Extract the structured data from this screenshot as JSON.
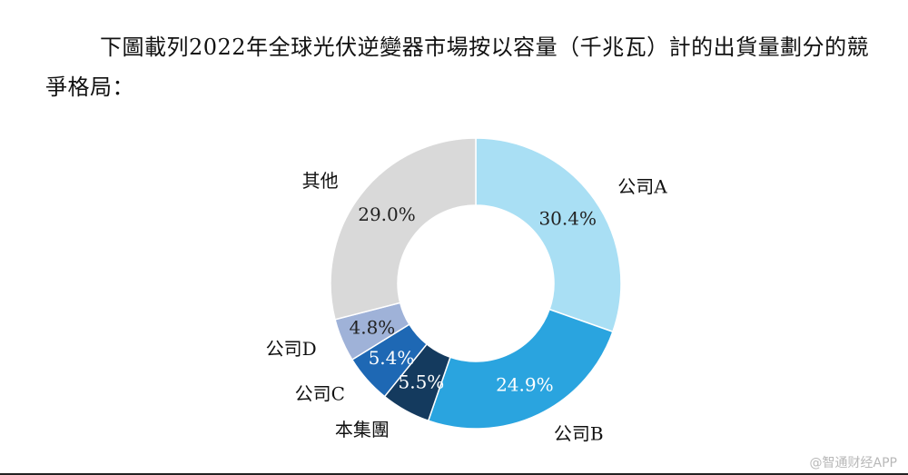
{
  "intro_text": "下圖載列2022年全球光伏逆變器市場按以容量（千兆瓦）計的出貨量劃分的競爭格局：",
  "watermark": "@智通财经APP",
  "chart_data": {
    "type": "pie",
    "style": "donut",
    "title": "",
    "unit": "%",
    "slices": [
      {
        "label": "公司A",
        "value": 30.4,
        "display": "30.4%",
        "color": "#a9dff4",
        "text_color": "#222222"
      },
      {
        "label": "公司B",
        "value": 24.9,
        "display": "24.9%",
        "color": "#2aa4df",
        "text_color": "#ffffff"
      },
      {
        "label": "本集團",
        "value": 5.5,
        "display": "5.5%",
        "color": "#143a5e",
        "text_color": "#ffffff"
      },
      {
        "label": "公司C",
        "value": 5.4,
        "display": "5.4%",
        "color": "#1e68b4",
        "text_color": "#ffffff"
      },
      {
        "label": "公司D",
        "value": 4.8,
        "display": "4.8%",
        "color": "#9fb2d8",
        "text_color": "#222222"
      },
      {
        "label": "其他",
        "value": 29.0,
        "display": "29.0%",
        "color": "#d9d9d9",
        "text_color": "#222222"
      }
    ]
  }
}
